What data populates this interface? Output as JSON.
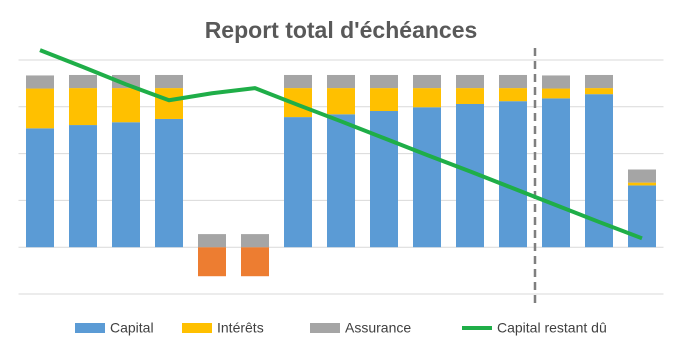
{
  "chart_data": {
    "type": "bar",
    "title": "Report total d'échéances",
    "categories": [
      null,
      null,
      null,
      null,
      null,
      null,
      null,
      null,
      null,
      null,
      null,
      null,
      null,
      null,
      null
    ],
    "ylim": [
      -1,
      4.3
    ],
    "yticks": [
      -1,
      0,
      1,
      2,
      3,
      4
    ],
    "grid": true,
    "legend": "bottom",
    "series": [
      {
        "name": "Capital",
        "type": "bar",
        "color": "#5b9bd5",
        "negative_color": "#ed7d31",
        "values": [
          2.54,
          2.61,
          2.67,
          2.74,
          -0.62,
          -0.62,
          2.78,
          2.84,
          2.91,
          2.99,
          3.06,
          3.12,
          3.18,
          3.27,
          1.32
        ]
      },
      {
        "name": "Intérêts",
        "type": "bar",
        "color": "#ffc000",
        "values": [
          0.85,
          0.79,
          0.73,
          0.66,
          0,
          0,
          0.62,
          0.56,
          0.49,
          0.41,
          0.34,
          0.28,
          0.21,
          0.13,
          0.06
        ]
      },
      {
        "name": "Assurance",
        "type": "bar",
        "color": "#a5a5a5",
        "values": [
          0.28,
          0.28,
          0.28,
          0.28,
          0.28,
          0.28,
          0.28,
          0.28,
          0.28,
          0.28,
          0.28,
          0.28,
          0.28,
          0.28,
          0.28
        ]
      },
      {
        "name": "Capital restant dû",
        "type": "line",
        "color": "#1fae48",
        "values": [
          4.21,
          3.85,
          3.48,
          3.14,
          3.29,
          3.4,
          3.04,
          2.69,
          2.33,
          1.97,
          1.62,
          1.26,
          0.9,
          0.54,
          0.19
        ]
      }
    ]
  }
}
